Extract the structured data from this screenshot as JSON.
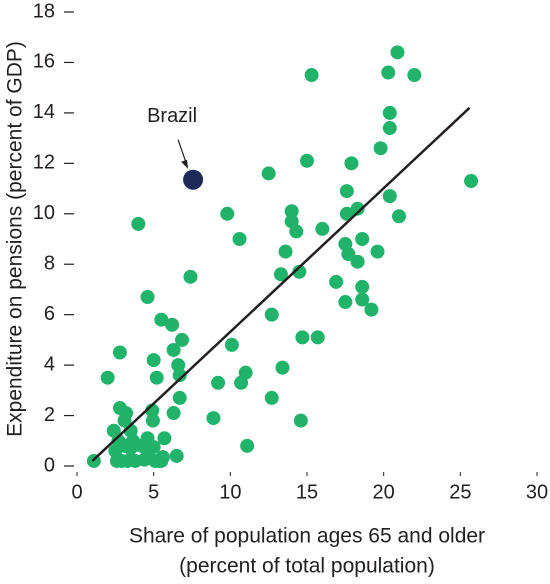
{
  "chart_data": {
    "type": "scatter",
    "ylabel": "Expenditure on pensions (percent of GDP)",
    "xlabel": [
      "Share of population ages 65 and older",
      "(percent of total population)"
    ],
    "xlim": [
      0,
      30
    ],
    "xticks": [
      0,
      5,
      10,
      15,
      20,
      25,
      30
    ],
    "ylim": [
      0,
      18
    ],
    "yticks": [
      0,
      2,
      4,
      6,
      8,
      10,
      12,
      14,
      16,
      18
    ],
    "series": [
      {
        "color": "#22b36b",
        "x": [
          20.9,
          20.3,
          22.0,
          15.3,
          20.4,
          20.4,
          19.8,
          15.0,
          17.9,
          25.7,
          12.5,
          17.6,
          20.4,
          14.0,
          9.8,
          17.6,
          18.3,
          21.0,
          14.0,
          14.3,
          4.0,
          10.6,
          16.0,
          17.5,
          18.6,
          17.7,
          18.3,
          19.6,
          13.6,
          14.5,
          13.3,
          7.4,
          16.9,
          18.6,
          17.5,
          18.6,
          19.2,
          4.6,
          12.7,
          5.5,
          6.2,
          15.7,
          14.7,
          6.85,
          6.3,
          10.1,
          2.8,
          5.0,
          6.6,
          6.7,
          5.2,
          2.0,
          11.0,
          13.4,
          10.7,
          9.2,
          6.7,
          12.7,
          2.8,
          3.2,
          4.9,
          6.3,
          2.4,
          3.1,
          8.9,
          14.6,
          4.95,
          3.5,
          11.1,
          4.6,
          5.7,
          6.5,
          1.1,
          2.7,
          3.1,
          2.5,
          2.9,
          3.8,
          3.5,
          4.2,
          4.6,
          5.0,
          5.35,
          5.6,
          3.65,
          3.3,
          2.6,
          4.4,
          5.1,
          5.5
        ],
        "y": [
          16.4,
          15.6,
          15.5,
          15.5,
          14.0,
          13.4,
          12.6,
          12.1,
          12.0,
          11.3,
          11.6,
          10.9,
          10.7,
          10.1,
          10.0,
          10.0,
          10.2,
          9.9,
          9.7,
          9.3,
          9.6,
          9.0,
          9.4,
          8.8,
          9.0,
          8.4,
          8.1,
          8.5,
          8.5,
          7.7,
          7.6,
          7.5,
          7.3,
          7.1,
          6.5,
          6.6,
          6.2,
          6.7,
          6.0,
          5.8,
          5.6,
          5.1,
          5.1,
          5.0,
          4.6,
          4.8,
          4.5,
          4.2,
          4.0,
          3.6,
          3.5,
          3.5,
          3.7,
          3.9,
          3.3,
          3.3,
          2.7,
          2.7,
          2.3,
          2.1,
          2.2,
          2.1,
          1.4,
          1.8,
          1.9,
          1.8,
          1.8,
          1.4,
          0.8,
          1.1,
          1.1,
          0.4,
          0.2,
          1.0,
          0.8,
          0.6,
          0.2,
          0.2,
          0.7,
          0.8,
          0.6,
          0.75,
          0.2,
          0.35,
          1.0,
          0.2,
          0.2,
          0.25,
          0.2,
          0.2
        ]
      },
      {
        "color": "#1b2a57",
        "x": [
          7.57
        ],
        "y": [
          11.35
        ]
      }
    ],
    "annotations": [
      {
        "text": "Brazil",
        "series": 1,
        "index": 0
      }
    ],
    "trend_line": {
      "color": "#231f20",
      "x": [
        1.0,
        25.6
      ],
      "y": [
        0.2,
        14.2
      ]
    }
  }
}
